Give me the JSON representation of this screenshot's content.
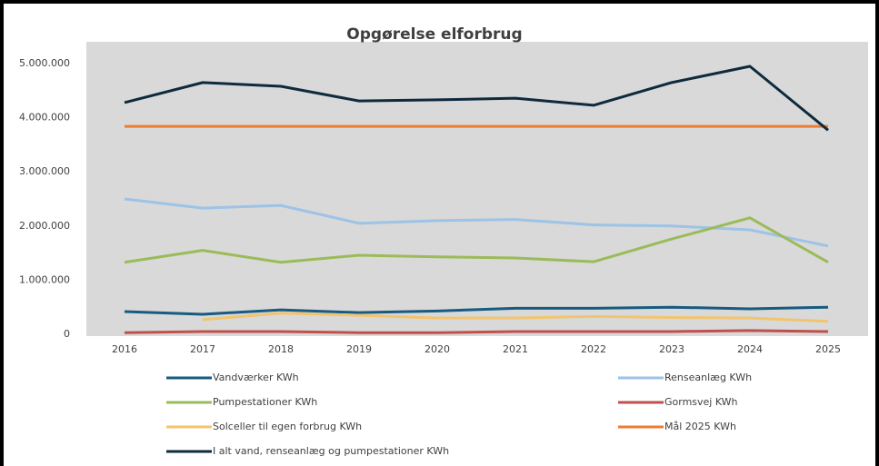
{
  "chart_data": {
    "type": "line",
    "title": "Opgørelse elforbrug",
    "categories": [
      "2016",
      "2017",
      "2018",
      "2019",
      "2020",
      "2021",
      "2022",
      "2023",
      "2024",
      "2025"
    ],
    "series": [
      {
        "name": "Vandværker KWh",
        "color": "#175b80",
        "values": [
          420000,
          370000,
          450000,
          400000,
          430000,
          480000,
          480000,
          500000,
          470000,
          500000
        ]
      },
      {
        "name": "Renseanlæg KWh",
        "color": "#9dc3e6",
        "values": [
          2500000,
          2330000,
          2380000,
          2050000,
          2100000,
          2120000,
          2020000,
          2000000,
          1930000,
          1630000
        ]
      },
      {
        "name": "Pumpestationer KWh",
        "color": "#9bbb59",
        "values": [
          1330000,
          1550000,
          1330000,
          1460000,
          1430000,
          1410000,
          1340000,
          1760000,
          2150000,
          1330000
        ]
      },
      {
        "name": "Gormsvej KWh",
        "color": "#c0504d",
        "values": [
          30000,
          50000,
          50000,
          30000,
          30000,
          50000,
          50000,
          50000,
          70000,
          50000
        ]
      },
      {
        "name": "Solceller til egen forbrug KWh",
        "color": "#f2c46d",
        "values": [
          null,
          270000,
          390000,
          350000,
          300000,
          300000,
          330000,
          310000,
          300000,
          240000
        ]
      },
      {
        "name": "Mål 2025 KWh",
        "color": "#ed7d31",
        "values": [
          3840000,
          3840000,
          3840000,
          3840000,
          3840000,
          3840000,
          3840000,
          3840000,
          3840000,
          3840000
        ]
      },
      {
        "name": "I alt  vand, renseanlæg og pumpestationer KWh",
        "color": "#0e2a3d",
        "values": [
          4280000,
          4650000,
          4580000,
          4310000,
          4330000,
          4360000,
          4230000,
          4650000,
          4950000,
          3770000
        ]
      }
    ],
    "ylim": [
      0,
      5000000
    ],
    "yticks": [
      {
        "value": 0,
        "label": "0"
      },
      {
        "value": 1000000,
        "label": "1.000.000"
      },
      {
        "value": 2000000,
        "label": "2.000.000"
      },
      {
        "value": 3000000,
        "label": "3.000.000"
      },
      {
        "value": 4000000,
        "label": "4.000.000"
      },
      {
        "value": 5000000,
        "label": "5.000.000"
      }
    ],
    "grid": false,
    "legend": "bottom"
  }
}
